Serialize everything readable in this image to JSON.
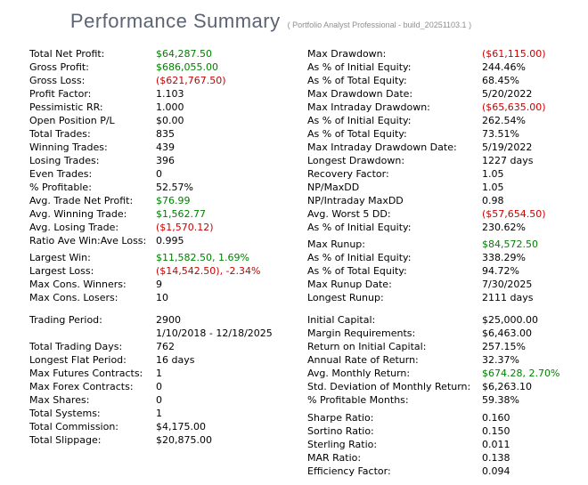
{
  "header": {
    "title": "Performance Summary",
    "subtitle": "( Portfolio Analyst Professional - build_20251103.1 )"
  },
  "colors": {
    "green": "#008000",
    "red": "#cc0000",
    "default": "#000000",
    "title": "#5c6372",
    "subtitle": "#8f8f8f",
    "background": "#ffffff"
  },
  "left_column": [
    {
      "label": "Total Net Profit:",
      "value": "$64,287.50",
      "color": "green"
    },
    {
      "label": "Gross Profit:",
      "value": "$686,055.00",
      "color": "green"
    },
    {
      "label": "Gross Loss:",
      "value": "($621,767.50)",
      "color": "red"
    },
    {
      "label": "Profit Factor:",
      "value": "1.103"
    },
    {
      "label": "Pessimistic RR:",
      "value": "1.000"
    },
    {
      "label": "Open Position P/L",
      "value": "$0.00"
    },
    {
      "label": "Total Trades:",
      "value": "835"
    },
    {
      "label": "Winning Trades:",
      "value": "439"
    },
    {
      "label": "Losing Trades:",
      "value": "396"
    },
    {
      "label": "Even Trades:",
      "value": "0"
    },
    {
      "label": "% Profitable:",
      "value": "52.57%"
    },
    {
      "label": "Avg. Trade Net Profit:",
      "value": "$76.99",
      "color": "green"
    },
    {
      "label": "Avg. Winning Trade:",
      "value": "$1,562.77",
      "color": "green"
    },
    {
      "label": "Avg. Losing Trade:",
      "value": "($1,570.12)",
      "color": "red"
    },
    {
      "label": "Ratio Ave Win:Ave Loss:",
      "value": "0.995"
    },
    {
      "spacer": 4
    },
    {
      "label": "Largest Win:",
      "value": "$11,582.50, 1.69%",
      "color": "green"
    },
    {
      "label": "Largest Loss:",
      "value": "($14,542.50), -2.34%",
      "color": "red"
    },
    {
      "label": "Max Cons. Winners:",
      "value": "9"
    },
    {
      "label": "Max Cons. Losers:",
      "value": "10"
    },
    {
      "spacer": 10
    },
    {
      "label": "Trading Period:",
      "value": "2900"
    },
    {
      "label": "",
      "value": "1/10/2018 - 12/18/2025"
    },
    {
      "label": "Total Trading Days:",
      "value": "762"
    },
    {
      "label": "Longest Flat Period:",
      "value": "16 days"
    },
    {
      "label": "Max Futures Contracts:",
      "value": "1"
    },
    {
      "label": "Max Forex Contracts:",
      "value": "0"
    },
    {
      "label": "Max Shares:",
      "value": "0"
    },
    {
      "label": "Total Systems:",
      "value": "1"
    },
    {
      "label": "Total Commission:",
      "value": "$4,175.00"
    },
    {
      "label": "Total Slippage:",
      "value": "$20,875.00"
    }
  ],
  "right_column": [
    {
      "label": "Max Drawdown:",
      "value": "($61,115.00)",
      "color": "red"
    },
    {
      "label": "As % of Initial Equity:",
      "value": "244.46%"
    },
    {
      "label": "As % of Total Equity:",
      "value": "68.45%"
    },
    {
      "label": "Max Drawdown Date:",
      "value": "5/20/2022"
    },
    {
      "label": "Max Intraday Drawdown:",
      "value": "($65,635.00)",
      "color": "red"
    },
    {
      "label": "As % of Initial Equity:",
      "value": "262.54%"
    },
    {
      "label": "As % of Total Equity:",
      "value": "73.51%"
    },
    {
      "label": "Max Intraday Drawdown Date:",
      "value": "5/19/2022"
    },
    {
      "label": "Longest Drawdown:",
      "value": "1227 days"
    },
    {
      "label": "Recovery Factor:",
      "value": "1.05"
    },
    {
      "label": "NP/MaxDD",
      "value": "1.05"
    },
    {
      "label": "NP/Intraday MaxDD",
      "value": "0.98"
    },
    {
      "label": "Avg. Worst 5 DD:",
      "value": "($57,654.50)",
      "color": "red"
    },
    {
      "label": "As % of Initial Equity:",
      "value": "230.62%"
    },
    {
      "spacer": 4
    },
    {
      "label": "Max Runup:",
      "value": "$84,572.50",
      "color": "green"
    },
    {
      "label": "As % of Initial Equity:",
      "value": "338.29%"
    },
    {
      "label": "As % of Total Equity:",
      "value": "94.72%"
    },
    {
      "label": "Max Runup Date:",
      "value": "7/30/2025"
    },
    {
      "label": "Longest Runup:",
      "value": "2111 days"
    },
    {
      "spacer": 10
    },
    {
      "label": "Initial Capital:",
      "value": "$25,000.00"
    },
    {
      "label": "Margin Requirements:",
      "value": "$6,463.00"
    },
    {
      "label": "Return on Initial Capital:",
      "value": "257.15%"
    },
    {
      "label": "Annual Rate of Return:",
      "value": "32.37%"
    },
    {
      "label": "Avg. Monthly Return:",
      "value": "$674.28, 2.70%",
      "color": "green"
    },
    {
      "label": "Std. Deviation of Monthly Return:",
      "value": "$6,263.10"
    },
    {
      "label": "% Profitable Months:",
      "value": "59.38%"
    },
    {
      "spacer": 5
    },
    {
      "label": "Sharpe Ratio:",
      "value": "0.160"
    },
    {
      "label": "Sortino Ratio:",
      "value": "0.150"
    },
    {
      "label": "Sterling Ratio:",
      "value": "0.011"
    },
    {
      "label": "MAR Ratio:",
      "value": "0.138"
    },
    {
      "label": "Efficiency Factor:",
      "value": "0.094"
    }
  ]
}
